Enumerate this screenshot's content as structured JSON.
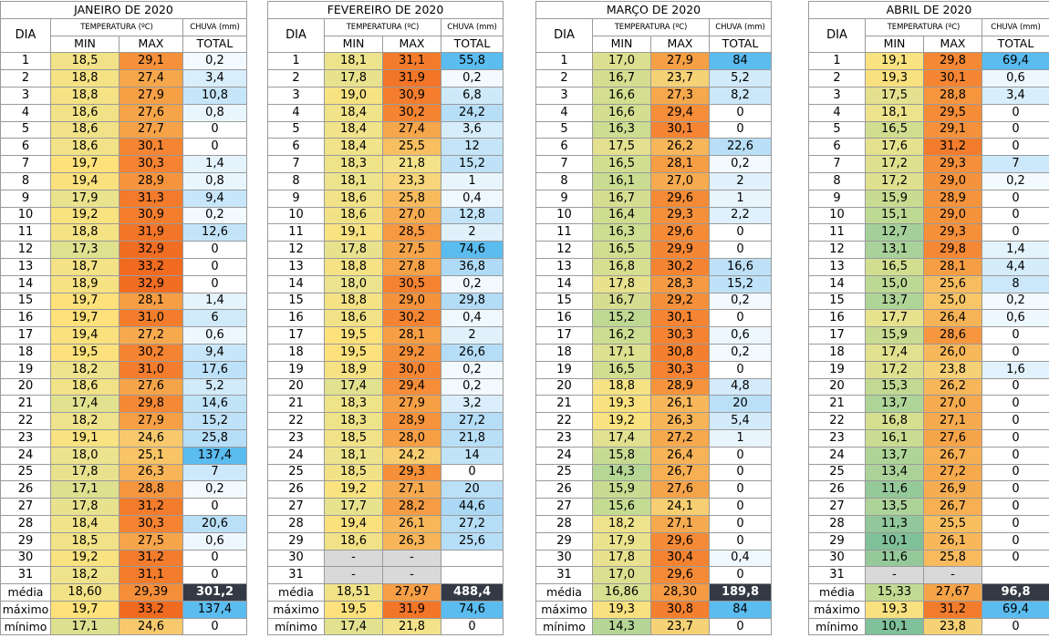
{
  "headers": {
    "dia": "DIA",
    "temperatura": "TEMPERATURA (ºC)",
    "chuva": "CHUVA (mm)",
    "min": "MIN",
    "max": "MAX",
    "total": "TOTAL",
    "media": "média",
    "maximo": "máximo",
    "minimo": "mínimo"
  },
  "months": [
    {
      "title": "JANEIRO DE 2020",
      "rows": [
        [
          "1",
          "18,5",
          "29,1",
          "0,2"
        ],
        [
          "2",
          "18,8",
          "27,4",
          "3,4"
        ],
        [
          "3",
          "18,8",
          "27,9",
          "10,8"
        ],
        [
          "4",
          "18,6",
          "27,6",
          "0,8"
        ],
        [
          "5",
          "18,6",
          "27,7",
          "0"
        ],
        [
          "6",
          "18,6",
          "30,1",
          "0"
        ],
        [
          "7",
          "19,7",
          "30,3",
          "1,4"
        ],
        [
          "8",
          "19,4",
          "28,9",
          "0,8"
        ],
        [
          "9",
          "17,9",
          "31,3",
          "9,4"
        ],
        [
          "10",
          "19,2",
          "30,9",
          "0,2"
        ],
        [
          "11",
          "18,8",
          "31,9",
          "12,6"
        ],
        [
          "12",
          "17,3",
          "32,9",
          "0"
        ],
        [
          "13",
          "18,7",
          "33,2",
          "0"
        ],
        [
          "14",
          "18,9",
          "32,9",
          "0"
        ],
        [
          "15",
          "19,7",
          "28,1",
          "1,4"
        ],
        [
          "16",
          "19,7",
          "31,0",
          "6"
        ],
        [
          "17",
          "19,4",
          "27,2",
          "0,6"
        ],
        [
          "18",
          "19,5",
          "30,2",
          "9,4"
        ],
        [
          "19",
          "18,2",
          "31,0",
          "17,6"
        ],
        [
          "20",
          "18,6",
          "27,6",
          "5,2"
        ],
        [
          "21",
          "17,4",
          "29,8",
          "14,6"
        ],
        [
          "22",
          "18,2",
          "27,9",
          "15,2"
        ],
        [
          "23",
          "19,1",
          "24,6",
          "25,8"
        ],
        [
          "24",
          "18,0",
          "25,1",
          "137,4"
        ],
        [
          "25",
          "17,8",
          "26,3",
          "7"
        ],
        [
          "26",
          "17,1",
          "28,8",
          "0,2"
        ],
        [
          "27",
          "17,8",
          "31,2",
          "0"
        ],
        [
          "28",
          "18,4",
          "30,3",
          "20,6"
        ],
        [
          "29",
          "18,5",
          "27,5",
          "0,6"
        ],
        [
          "30",
          "19,2",
          "31,2",
          "0"
        ],
        [
          "31",
          "18,2",
          "31,1",
          "0"
        ]
      ],
      "media": [
        "18,60",
        "29,39",
        "301,2"
      ],
      "maximo": [
        "19,7",
        "33,2",
        "137,4"
      ],
      "minimo": [
        "17,1",
        "24,6",
        "0"
      ]
    },
    {
      "title": "FEVEREIRO DE 2020",
      "rows": [
        [
          "1",
          "18,1",
          "31,1",
          "55,8"
        ],
        [
          "2",
          "17,8",
          "31,9",
          "0,2"
        ],
        [
          "3",
          "19,0",
          "30,9",
          "6,8"
        ],
        [
          "4",
          "18,4",
          "30,2",
          "24,2"
        ],
        [
          "5",
          "18,4",
          "27,4",
          "3,6"
        ],
        [
          "6",
          "18,4",
          "25,5",
          "12"
        ],
        [
          "7",
          "18,3",
          "21,8",
          "15,2"
        ],
        [
          "8",
          "18,1",
          "23,3",
          "1"
        ],
        [
          "9",
          "18,6",
          "25,8",
          "0,4"
        ],
        [
          "10",
          "18,6",
          "27,0",
          "12,8"
        ],
        [
          "11",
          "19,1",
          "28,5",
          "2"
        ],
        [
          "12",
          "17,8",
          "27,5",
          "74,6"
        ],
        [
          "13",
          "18,8",
          "27,8",
          "36,8"
        ],
        [
          "14",
          "18,0",
          "30,5",
          "0,2"
        ],
        [
          "15",
          "18,8",
          "29,0",
          "29,8"
        ],
        [
          "16",
          "18,6",
          "30,2",
          "0,4"
        ],
        [
          "17",
          "19,5",
          "28,1",
          "2"
        ],
        [
          "18",
          "19,5",
          "29,2",
          "26,6"
        ],
        [
          "19",
          "18,9",
          "30,0",
          "0,2"
        ],
        [
          "20",
          "17,4",
          "29,4",
          "0,2"
        ],
        [
          "21",
          "18,3",
          "27,9",
          "3,2"
        ],
        [
          "22",
          "18,3",
          "28,9",
          "27,2"
        ],
        [
          "23",
          "18,5",
          "28,0",
          "21,8"
        ],
        [
          "24",
          "18,1",
          "24,2",
          "14"
        ],
        [
          "25",
          "18,5",
          "29,3",
          "0"
        ],
        [
          "26",
          "19,2",
          "27,1",
          "20"
        ],
        [
          "27",
          "17,7",
          "28,2",
          "44,6"
        ],
        [
          "28",
          "19,4",
          "26,1",
          "27,2"
        ],
        [
          "29",
          "18,6",
          "26,3",
          "25,6"
        ],
        [
          "30",
          "-",
          "-",
          ""
        ],
        [
          "31",
          "-",
          "-",
          ""
        ]
      ],
      "media": [
        "18,51",
        "27,97",
        "488,4"
      ],
      "maximo": [
        "19,5",
        "31,9",
        "74,6"
      ],
      "minimo": [
        "17,4",
        "21,8",
        "0"
      ]
    },
    {
      "title": "MARÇO DE 2020",
      "rows": [
        [
          "1",
          "17,0",
          "27,9",
          "84"
        ],
        [
          "2",
          "16,7",
          "23,7",
          "5,2"
        ],
        [
          "3",
          "16,6",
          "27,3",
          "8,2"
        ],
        [
          "4",
          "16,6",
          "29,4",
          "0"
        ],
        [
          "5",
          "16,3",
          "30,1",
          "0"
        ],
        [
          "6",
          "17,5",
          "26,2",
          "22,6"
        ],
        [
          "7",
          "16,5",
          "28,1",
          "0,2"
        ],
        [
          "8",
          "16,1",
          "27,0",
          "2"
        ],
        [
          "9",
          "16,7",
          "29,6",
          "1"
        ],
        [
          "10",
          "16,4",
          "29,3",
          "2,2"
        ],
        [
          "11",
          "16,3",
          "29,6",
          "0"
        ],
        [
          "12",
          "16,5",
          "29,9",
          "0"
        ],
        [
          "13",
          "16,8",
          "30,2",
          "16,6"
        ],
        [
          "14",
          "17,8",
          "28,3",
          "15,2"
        ],
        [
          "15",
          "16,7",
          "29,2",
          "0,2"
        ],
        [
          "16",
          "15,2",
          "30,1",
          "0"
        ],
        [
          "17",
          "16,2",
          "30,3",
          "0,6"
        ],
        [
          "18",
          "17,1",
          "30,8",
          "0,2"
        ],
        [
          "19",
          "16,5",
          "30,3",
          "0"
        ],
        [
          "20",
          "18,8",
          "28,9",
          "4,8"
        ],
        [
          "21",
          "19,3",
          "26,1",
          "20"
        ],
        [
          "22",
          "19,2",
          "26,3",
          "5,4"
        ],
        [
          "23",
          "17,4",
          "27,2",
          "1"
        ],
        [
          "24",
          "15,8",
          "26,4",
          "0"
        ],
        [
          "25",
          "14,3",
          "26,7",
          "0"
        ],
        [
          "26",
          "15,9",
          "27,6",
          "0"
        ],
        [
          "27",
          "15,6",
          "24,1",
          "0"
        ],
        [
          "28",
          "18,2",
          "27,1",
          "0"
        ],
        [
          "29",
          "17,9",
          "29,6",
          "0"
        ],
        [
          "30",
          "17,8",
          "30,4",
          "0,4"
        ],
        [
          "31",
          "17,0",
          "29,6",
          "0"
        ]
      ],
      "media": [
        "16,86",
        "28,30",
        "189,8"
      ],
      "maximo": [
        "19,3",
        "30,8",
        "84"
      ],
      "minimo": [
        "14,3",
        "23,7",
        "0"
      ]
    },
    {
      "title": "ABRIL DE 2020",
      "rows": [
        [
          "1",
          "19,1",
          "29,8",
          "69,4"
        ],
        [
          "2",
          "19,3",
          "30,1",
          "0,6"
        ],
        [
          "3",
          "17,5",
          "28,8",
          "3,4"
        ],
        [
          "4",
          "18,1",
          "29,5",
          "0"
        ],
        [
          "5",
          "16,5",
          "29,1",
          "0"
        ],
        [
          "6",
          "17,6",
          "31,2",
          "0"
        ],
        [
          "7",
          "17,2",
          "29,3",
          "7"
        ],
        [
          "8",
          "17,2",
          "29,0",
          "0,2"
        ],
        [
          "9",
          "15,9",
          "28,9",
          "0"
        ],
        [
          "10",
          "15,1",
          "29,0",
          "0"
        ],
        [
          "11",
          "12,7",
          "29,3",
          "0"
        ],
        [
          "12",
          "13,1",
          "29,8",
          "1,4"
        ],
        [
          "13",
          "16,5",
          "28,1",
          "4,4"
        ],
        [
          "14",
          "15,0",
          "25,6",
          "8"
        ],
        [
          "15",
          "13,7",
          "25,0",
          "0,2"
        ],
        [
          "16",
          "17,7",
          "26,4",
          "0,6"
        ],
        [
          "17",
          "15,9",
          "28,6",
          "0"
        ],
        [
          "18",
          "17,4",
          "26,0",
          "0"
        ],
        [
          "19",
          "17,2",
          "23,8",
          "1,6"
        ],
        [
          "20",
          "15,3",
          "26,2",
          "0"
        ],
        [
          "21",
          "13,7",
          "27,0",
          "0"
        ],
        [
          "22",
          "16,8",
          "27,1",
          "0"
        ],
        [
          "23",
          "16,1",
          "27,6",
          "0"
        ],
        [
          "24",
          "13,7",
          "26,7",
          "0"
        ],
        [
          "25",
          "13,4",
          "27,2",
          "0"
        ],
        [
          "26",
          "11,6",
          "26,9",
          "0"
        ],
        [
          "27",
          "13,5",
          "26,7",
          "0"
        ],
        [
          "28",
          "11,3",
          "25,5",
          "0"
        ],
        [
          "29",
          "10,1",
          "26,1",
          "0"
        ],
        [
          "30",
          "11,6",
          "25,8",
          "0"
        ],
        [
          "31",
          "-",
          "-",
          ""
        ]
      ],
      "media": [
        "15,33",
        "27,67",
        "96,8"
      ],
      "maximo": [
        "19,3",
        "31,2",
        "69,4"
      ],
      "minimo": [
        "10,1",
        "23,8",
        "0"
      ]
    }
  ],
  "colors": {
    "missing": "#d9d9d9",
    "total_highlight": "#333a45",
    "total_highlight_text": "#ffffff",
    "grid": "#9a9a9a"
  }
}
